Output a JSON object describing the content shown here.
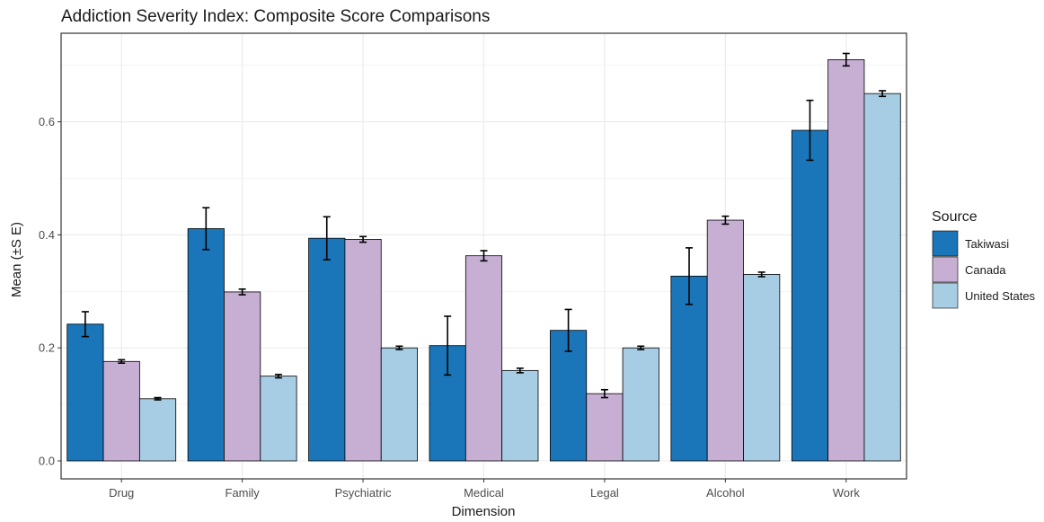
{
  "chart_data": {
    "type": "bar",
    "title": "Addiction Severity Index: Composite Score Comparisons",
    "xlabel": "Dimension",
    "ylabel": "Mean (±S E)",
    "ylim": [
      0,
      0.75
    ],
    "y_ticks": [
      0.0,
      0.2,
      0.4,
      0.6
    ],
    "y_tick_labels": [
      "0.0",
      "0.2",
      "0.4",
      "0.6"
    ],
    "grid": true,
    "legend_position": "right",
    "legend_title": "Source",
    "categories": [
      "Drug",
      "Family",
      "Psychiatric",
      "Medical",
      "Legal",
      "Alcohol",
      "Work"
    ],
    "series": [
      {
        "name": "Takiwasi",
        "color": "#1a76b8",
        "values": [
          0.242,
          0.411,
          0.394,
          0.204,
          0.231,
          0.327,
          0.585
        ],
        "se": [
          0.022,
          0.037,
          0.038,
          0.052,
          0.037,
          0.05,
          0.053
        ]
      },
      {
        "name": "Canada",
        "color": "#c7afd4",
        "values": [
          0.176,
          0.299,
          0.392,
          0.363,
          0.119,
          0.426,
          0.71
        ],
        "se": [
          0.003,
          0.005,
          0.005,
          0.009,
          0.007,
          0.007,
          0.011
        ]
      },
      {
        "name": "United States",
        "color": "#a6cde3",
        "values": [
          0.11,
          0.15,
          0.2,
          0.16,
          0.2,
          0.33,
          0.65
        ],
        "se": [
          0.002,
          0.003,
          0.003,
          0.004,
          0.003,
          0.004,
          0.005
        ]
      }
    ]
  }
}
